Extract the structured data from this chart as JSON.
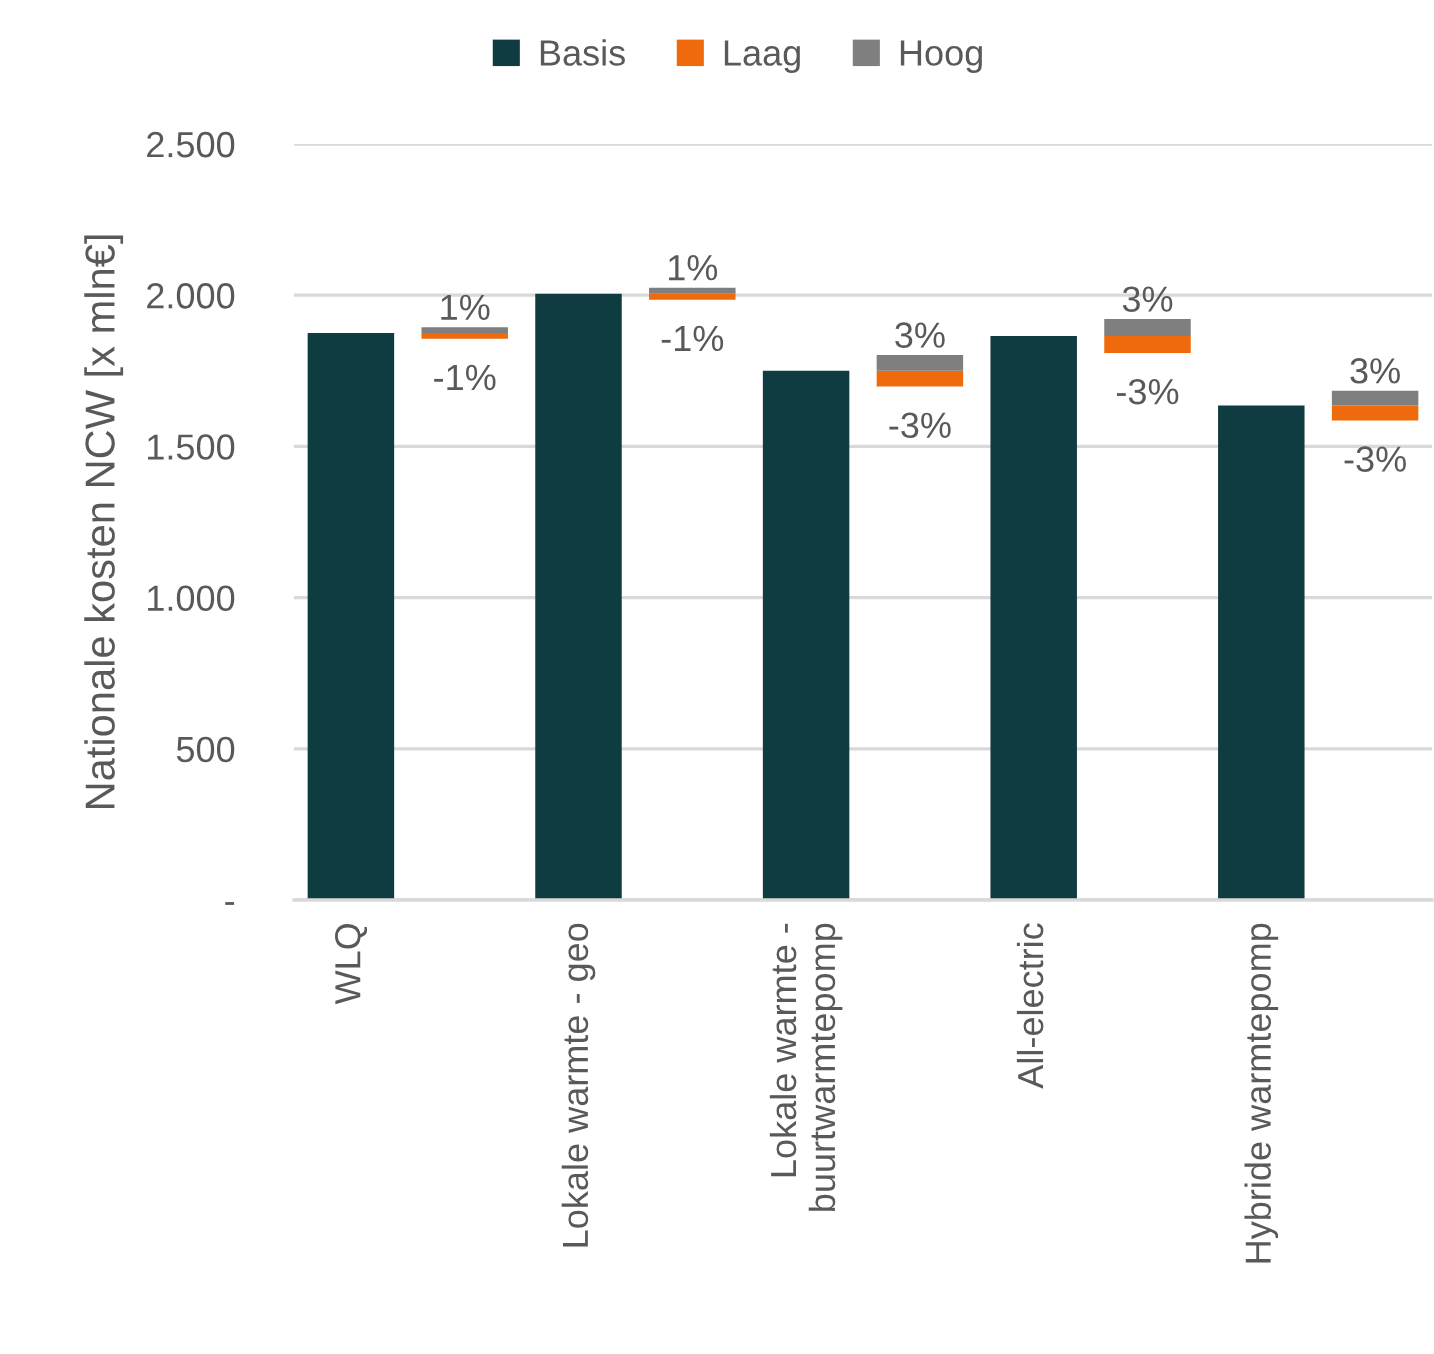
{
  "chart_data": {
    "type": "bar",
    "ylabel": "Nationale kosten NCW [x mln€]",
    "categories": [
      "WLQ",
      null,
      "Lokale warmte - geo",
      null,
      "Lokale warmte -\nbuurtwarmtepomp",
      null,
      "All-electric",
      null,
      "Hybride warmtepomp",
      null
    ],
    "series": [
      {
        "name": "Basis",
        "color": "#0f3c41",
        "values": [
          1875,
          null,
          2005,
          null,
          1750,
          null,
          1865,
          null,
          1635,
          null
        ]
      },
      {
        "name": "Laag",
        "color": "#ee6a0c",
        "values": [
          null,
          19,
          null,
          20,
          null,
          52,
          null,
          56,
          null,
          49
        ],
        "base": [
          null,
          1856,
          null,
          1985,
          null,
          1698,
          null,
          1809,
          null,
          1586
        ]
      },
      {
        "name": "Hoog",
        "color": "#7f7f7f",
        "values": [
          null,
          19,
          null,
          20,
          null,
          52,
          null,
          56,
          null,
          49
        ],
        "base": [
          null,
          1875,
          null,
          2005,
          null,
          1750,
          null,
          1865,
          null,
          1635
        ]
      }
    ],
    "annotations": [
      "1%",
      "-1%",
      "1%",
      "-1%",
      "3%",
      "-3%",
      "3%",
      "-3%",
      "3%",
      "-3%"
    ],
    "ylim": [
      0,
      2500
    ],
    "yticks": [
      {
        "value": 0,
        "label": "-"
      },
      500,
      {
        "value": 1000,
        "label": "1.000"
      },
      {
        "value": 1500,
        "label": "1.500"
      },
      {
        "value": 2000,
        "label": "2.000"
      },
      {
        "value": 2500,
        "label": "2.500"
      }
    ],
    "grid": "y",
    "legend": "top"
  }
}
